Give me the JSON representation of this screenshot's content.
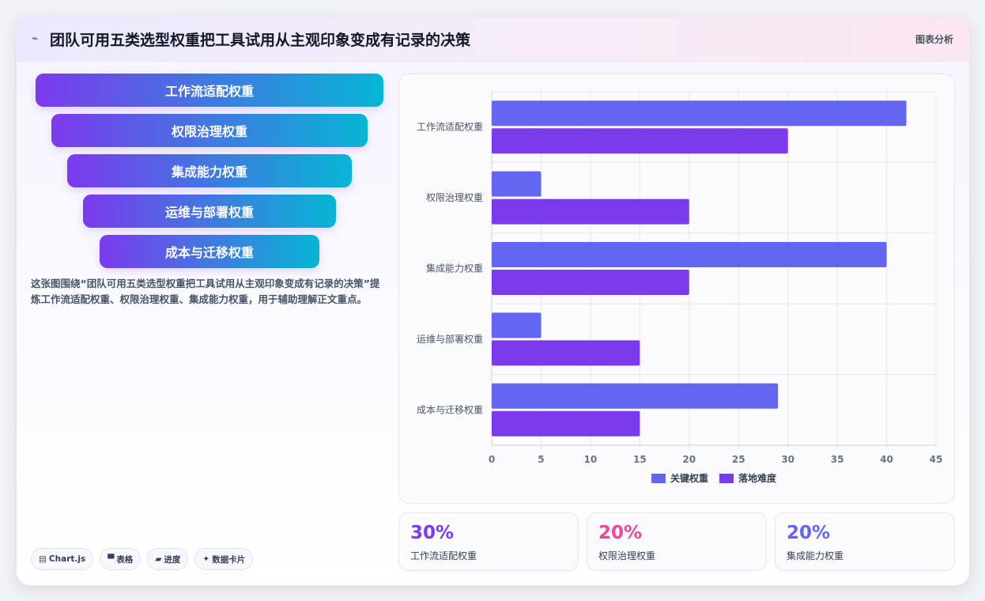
{
  "header": {
    "icon": "chart-line-icon",
    "title": "团队可用五类选型权重把工具试用从主观印象变成有记录的决策",
    "tag": "图表分析"
  },
  "funnel": [
    "工作流适配权重",
    "权限治理权重",
    "集成能力权重",
    "运维与部署权重",
    "成本与迁移权重"
  ],
  "description": "这张图围绕“团队可用五类选型权重把工具试用从主观印象变成有记录的决策”提炼工作流适配权重、权限治理权重、集成能力权重，用于辅助理解正文重点。",
  "chips": [
    {
      "icon": "chart-icon",
      "glyph": "▤",
      "label": "Chart.js"
    },
    {
      "icon": "table-icon",
      "glyph": "▀",
      "label": "表格"
    },
    {
      "icon": "progress-icon",
      "glyph": "▰",
      "label": "进度"
    },
    {
      "icon": "sparkle-icon",
      "glyph": "✦",
      "label": "数据卡片"
    }
  ],
  "chart_data": {
    "type": "bar",
    "orientation": "horizontal",
    "categories": [
      "工作流适配权重",
      "权限治理权重",
      "集成能力权重",
      "运维与部署权重",
      "成本与迁移权重"
    ],
    "series": [
      {
        "name": "关键权重",
        "color": "#6366f1",
        "values": [
          42,
          5,
          40,
          5,
          29
        ]
      },
      {
        "name": "落地难度",
        "color": "#7c3aed",
        "values": [
          30,
          20,
          20,
          15,
          15
        ]
      }
    ],
    "xlim": [
      0,
      45
    ],
    "xticks": [
      0,
      5,
      10,
      15,
      20,
      25,
      30,
      35,
      40,
      45
    ],
    "grid": true,
    "legend": "bottom",
    "xlabel": "",
    "ylabel": ""
  },
  "stats": [
    {
      "value": "30%",
      "label": "工作流适配权重",
      "color": "#7c3aed"
    },
    {
      "value": "20%",
      "label": "权限治理权重",
      "color": "#ec4899"
    },
    {
      "value": "20%",
      "label": "集成能力权重",
      "color": "#6366f1"
    }
  ]
}
